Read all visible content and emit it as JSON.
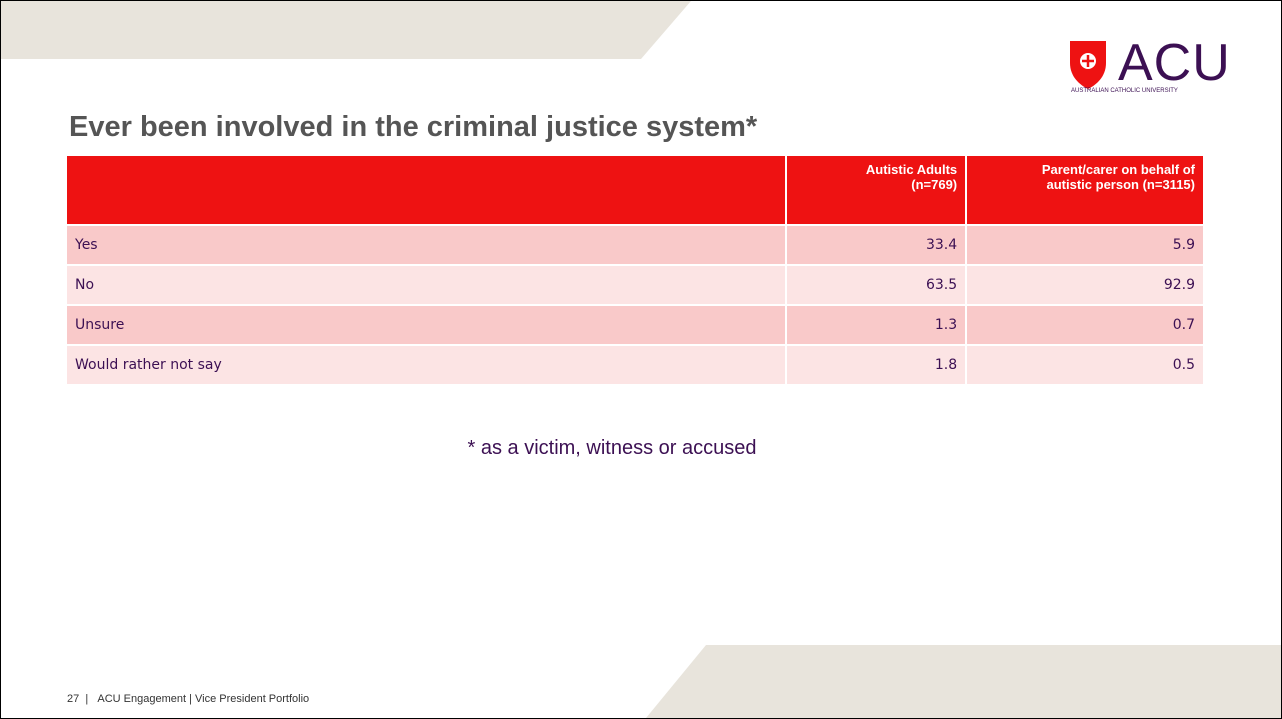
{
  "logo": {
    "name": "ACU",
    "subtitle": "AUSTRALIAN CATHOLIC UNIVERSITY"
  },
  "title": "Ever been involved in the criminal justice system*",
  "table": {
    "header": [
      "Autistic Adults (n=769)",
      "Parent/carer on behalf of autistic person (n=3115)"
    ],
    "rows": [
      [
        "Yes",
        33.4,
        5.9
      ],
      [
        "No",
        63.5,
        92.9
      ],
      [
        "Unsure",
        1.3,
        0.7
      ],
      [
        "Would rather not say",
        1.8,
        0.5
      ]
    ]
  },
  "footnote": "* as a victim, witness or accused",
  "footer": {
    "page": "27",
    "text": "ACU Engagement | Vice President Portfolio"
  }
}
